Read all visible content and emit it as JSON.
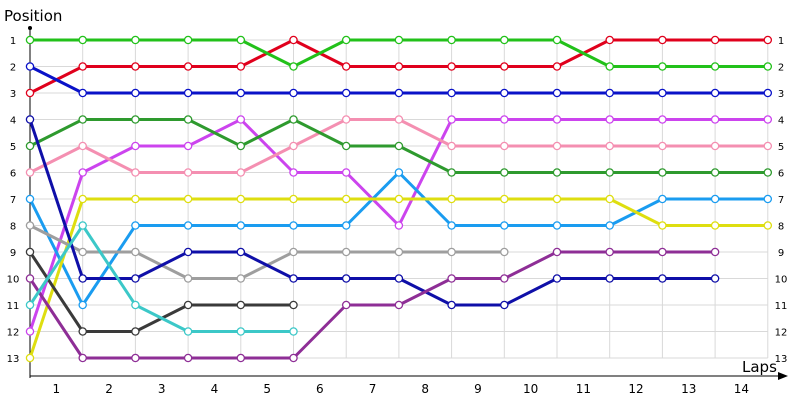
{
  "chart_data": {
    "type": "line",
    "title": "",
    "ylabel": "Position",
    "xlabel": "Laps",
    "x_categories": [
      "1",
      "2",
      "3",
      "4",
      "5",
      "6",
      "7",
      "8",
      "9",
      "10",
      "11",
      "12",
      "13",
      "14"
    ],
    "y_ticks": [
      1,
      2,
      3,
      4,
      5,
      6,
      7,
      8,
      9,
      10,
      11,
      12,
      13
    ],
    "ylim": [
      1,
      13
    ],
    "y_reversed": true,
    "x_points": [
      0,
      1,
      2,
      3,
      4,
      5,
      6,
      7,
      8,
      9,
      10,
      11,
      12,
      13,
      14
    ],
    "grid": true,
    "series": [
      {
        "color": "#e0001c",
        "values": [
          3,
          2,
          2,
          2,
          2,
          1,
          2,
          2,
          2,
          2,
          2,
          1,
          1,
          1,
          1
        ]
      },
      {
        "color": "#22c11a",
        "values": [
          1,
          1,
          1,
          1,
          1,
          2,
          1,
          1,
          1,
          1,
          1,
          2,
          2,
          2,
          2
        ]
      },
      {
        "color": "#0a12c8",
        "values": [
          2,
          3,
          3,
          3,
          3,
          3,
          3,
          3,
          3,
          3,
          3,
          3,
          3,
          3,
          3
        ]
      },
      {
        "color": "#cc44ee",
        "values": [
          12,
          6,
          5,
          5,
          4,
          6,
          6,
          8,
          4,
          4,
          4,
          4,
          4,
          4,
          4
        ]
      },
      {
        "color": "#f48fb1",
        "values": [
          6,
          5,
          6,
          6,
          6,
          5,
          4,
          4,
          5,
          5,
          5,
          5,
          5,
          5,
          5
        ]
      },
      {
        "color": "#2e9a2e",
        "values": [
          5,
          4,
          4,
          4,
          5,
          4,
          5,
          5,
          6,
          6,
          6,
          6,
          6,
          6,
          6
        ]
      },
      {
        "color": "#1a9cf0",
        "values": [
          7,
          11,
          8,
          8,
          8,
          8,
          8,
          6,
          8,
          8,
          8,
          8,
          7,
          7,
          7
        ]
      },
      {
        "color": "#dede10",
        "values": [
          13,
          7,
          7,
          7,
          7,
          7,
          7,
          7,
          7,
          7,
          7,
          7,
          8,
          8,
          8
        ]
      },
      {
        "color": "#9e9e9e",
        "values": [
          8,
          9,
          9,
          10,
          10,
          9,
          9,
          9,
          9,
          9
        ]
      },
      {
        "color": "#0f0fa8",
        "values": [
          4,
          10,
          10,
          9,
          9,
          10,
          10,
          10,
          11,
          11,
          10,
          10,
          10,
          10
        ]
      },
      {
        "color": "#8e2e96",
        "values": [
          10,
          13,
          13,
          13,
          13,
          13,
          11,
          11,
          10,
          10,
          9,
          9,
          9,
          9
        ]
      },
      {
        "color": "#3a3a3a",
        "values": [
          9,
          12,
          12,
          11,
          11,
          11
        ]
      },
      {
        "color": "#3cc8c8",
        "values": [
          11,
          8,
          11,
          12,
          12,
          12
        ]
      }
    ]
  }
}
